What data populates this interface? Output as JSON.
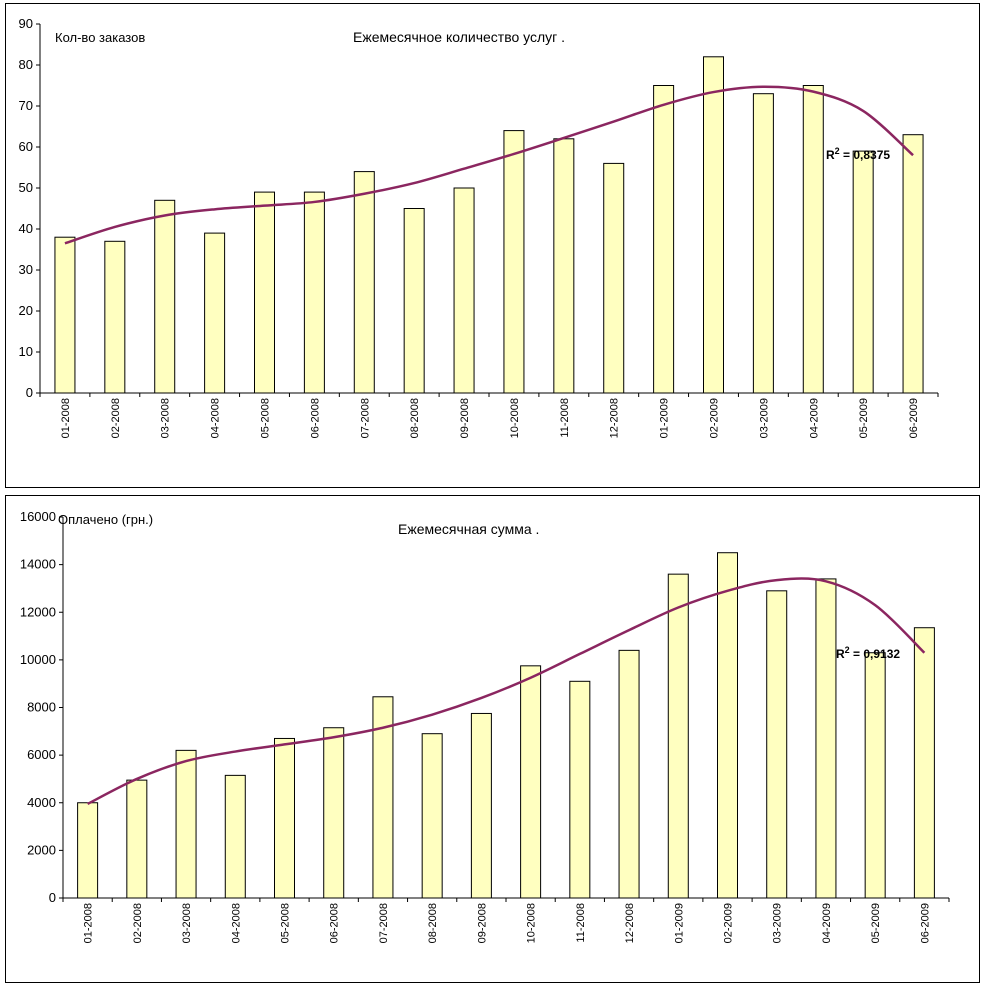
{
  "colors": {
    "bar_fill": "#ffffc0",
    "bar_stroke": "#000000",
    "trend": "#8b2660"
  },
  "chart_data": [
    {
      "type": "bar",
      "title": "Ежемесячное количество услуг .",
      "ylabel": "Кол-во заказов",
      "categories": [
        "01-2008",
        "02-2008",
        "03-2008",
        "04-2008",
        "05-2008",
        "06-2008",
        "07-2008",
        "08-2008",
        "09-2008",
        "10-2008",
        "11-2008",
        "12-2008",
        "01-2009",
        "02-2009",
        "03-2009",
        "04-2009",
        "05-2009",
        "06-2009"
      ],
      "values": [
        38,
        37,
        47,
        39,
        49,
        49,
        54,
        45,
        50,
        64,
        62,
        56,
        75,
        82,
        73,
        75,
        59,
        63
      ],
      "ylim": [
        0,
        90
      ],
      "yticks": [
        "0",
        "10",
        "20",
        "30",
        "40",
        "50",
        "60",
        "70",
        "80",
        "90"
      ],
      "trendline": {
        "type": "polynomial",
        "r2_base": "R",
        "r2_exp": "2",
        "r2_value": " = 0,8375",
        "values": [
          36.5,
          40.5,
          43.3,
          44.8,
          45.7,
          46.6,
          48.6,
          51.2,
          54.7,
          58.3,
          62.2,
          66.2,
          70.3,
          73.4,
          74.7,
          73.5,
          68.8,
          58.0
        ]
      },
      "grid": false,
      "legend": "none"
    },
    {
      "type": "bar",
      "title": "Ежемесячная сумма .",
      "ylabel": "Оплачено (грн.)",
      "categories": [
        "01-2008",
        "02-2008",
        "03-2008",
        "04-2008",
        "05-2008",
        "06-2008",
        "07-2008",
        "08-2008",
        "09-2008",
        "10-2008",
        "11-2008",
        "12-2008",
        "01-2009",
        "02-2009",
        "03-2009",
        "04-2009",
        "05-2009",
        "06-2009"
      ],
      "values": [
        4000,
        4950,
        6200,
        5150,
        6700,
        7150,
        8450,
        6900,
        7750,
        9750,
        9100,
        10400,
        13600,
        14500,
        12900,
        13400,
        10300,
        11350
      ],
      "ylim": [
        0,
        16000
      ],
      "yticks": [
        "0",
        "2000",
        "4000",
        "6000",
        "8000",
        "10000",
        "12000",
        "14000",
        "16000"
      ],
      "trendline": {
        "type": "polynomial",
        "r2_base": "R",
        "r2_exp": "2",
        "r2_value": " = 0,9132",
        "values": [
          3950,
          5000,
          5750,
          6150,
          6450,
          6750,
          7150,
          7700,
          8400,
          9250,
          10250,
          11250,
          12200,
          12900,
          13350,
          13300,
          12300,
          10300
        ]
      },
      "grid": false,
      "legend": "none"
    }
  ]
}
